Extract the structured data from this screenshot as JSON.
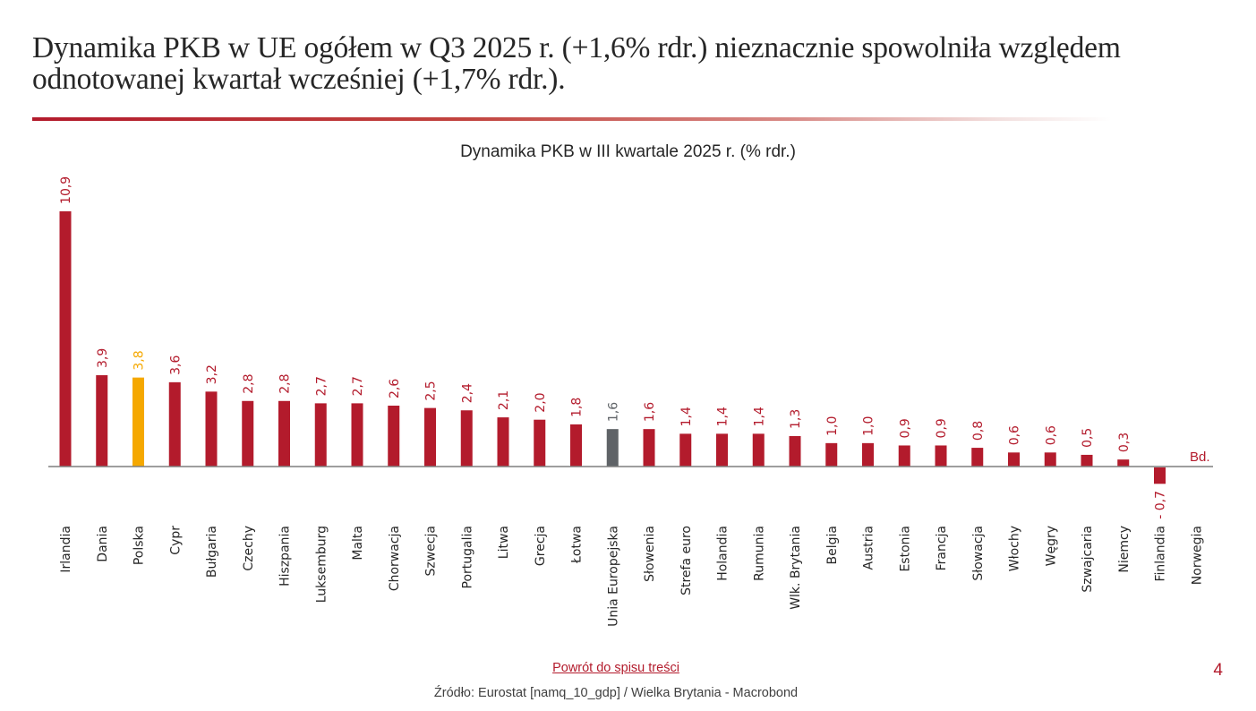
{
  "slide": {
    "title": "Dynamika PKB w UE ogółem w Q3 2025 r. (+1,6% rdr.) nieznacznie spowolniła względem odnotowanej kwartał wcześniej (+1,7% rdr.).",
    "back_link": "Powrót do spisu treści",
    "page_number": "4",
    "source": "Źródło: Eurostat [namq_10_gdp] / Wielka Brytania - Macrobond"
  },
  "colors": {
    "default_bar": "#b31b2c",
    "highlight_poland": "#f5a800",
    "highlight_eu": "#5f6367",
    "axis": "#7f7f7f",
    "title_rule": "#b31b2c"
  },
  "chart_data": {
    "type": "bar",
    "title": "Dynamika PKB w III kwartale 2025 r. (% rdr.)",
    "xlabel": "",
    "ylabel": "",
    "unit": "% rdr.",
    "grid": false,
    "legend": "none",
    "ylim": [
      -0.7,
      10.9
    ],
    "categories": [
      "Irlandia",
      "Dania",
      "Polska",
      "Cypr",
      "Bułgaria",
      "Czechy",
      "Hiszpania",
      "Luksemburg",
      "Malta",
      "Chorwacja",
      "Szwecja",
      "Portugalia",
      "Litwa",
      "Grecja",
      "Łotwa",
      "Unia Europejska",
      "Słowenia",
      "Strefa euro",
      "Holandia",
      "Rumunia",
      "Wlk. Brytania",
      "Belgia",
      "Austria",
      "Estonia",
      "Francja",
      "Słowacja",
      "Włochy",
      "Węgry",
      "Szwajcaria",
      "Niemcy",
      "Finlandia",
      "Norwegia"
    ],
    "values": [
      10.9,
      3.9,
      3.8,
      3.6,
      3.2,
      2.8,
      2.8,
      2.7,
      2.7,
      2.6,
      2.5,
      2.4,
      2.1,
      2.0,
      1.8,
      1.6,
      1.6,
      1.4,
      1.4,
      1.4,
      1.3,
      1.0,
      1.0,
      0.9,
      0.9,
      0.8,
      0.6,
      0.6,
      0.5,
      0.3,
      -0.7,
      null
    ],
    "value_labels": [
      "10,9",
      "3,9",
      "3,8",
      "3,6",
      "3,2",
      "2,8",
      "2,8",
      "2,7",
      "2,7",
      "2,6",
      "2,5",
      "2,4",
      "2,1",
      "2,0",
      "1,8",
      "1,6",
      "1,6",
      "1,4",
      "1,4",
      "1,4",
      "1,3",
      "1,0",
      "1,0",
      "0,9",
      "0,9",
      "0,8",
      "0,6",
      "0,6",
      "0,5",
      "0,3",
      "- 0,7",
      "Bd."
    ],
    "highlights": {
      "Polska": "highlight_poland",
      "Unia Europejska": "highlight_eu"
    }
  }
}
